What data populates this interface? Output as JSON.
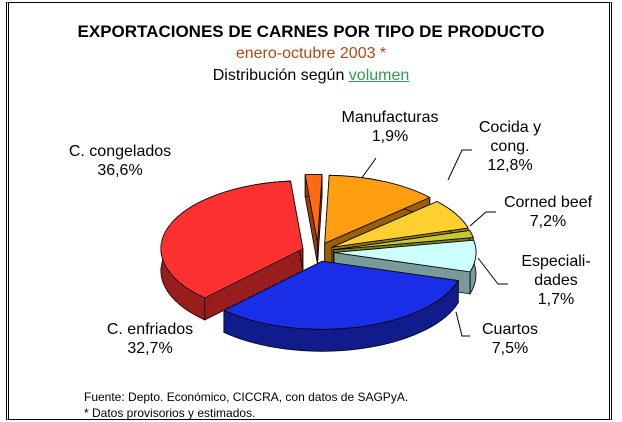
{
  "chart_data": {
    "type": "pie",
    "title": "EXPORTACIONES DE CARNES POR TIPO DE PRODUCTO",
    "subtitle": "enero-octubre 2003 *",
    "caption": "Distribución según",
    "caption_link": "volumen",
    "categories": [
      "Manufacturas",
      "Cocida y\ncong.",
      "Corned beef",
      "Especiali-\ndades",
      "Cuartos",
      "C. enfriados",
      "C. congelados"
    ],
    "values": [
      1.9,
      12.8,
      7.2,
      1.7,
      7.5,
      32.7,
      36.6
    ],
    "value_labels": [
      "1,9%",
      "12,8%",
      "7,2%",
      "1,7%",
      "7,5%",
      "32,7%",
      "36,6%"
    ],
    "colors": [
      "#ff6a10",
      "#ff9e10",
      "#ffd030",
      "#c8c830",
      "#ccffff",
      "#1a2ee8",
      "#ff3030"
    ],
    "source": "Fuente: Depto. Económico, CICCRA,  con datos de SAGPyA.",
    "note": "* Datos provisorios y estimados."
  }
}
